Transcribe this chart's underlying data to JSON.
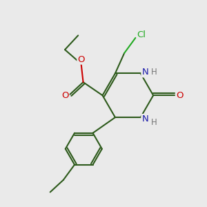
{
  "bg_color": "#eaeaea",
  "bond_color": "#2d5a1b",
  "bond_width": 1.5,
  "atom_colors": {
    "O": "#cc0000",
    "N": "#1a1aaa",
    "Cl": "#22aa22",
    "C": "#2d5a1b",
    "H": "#777777"
  },
  "font_size": 9.5
}
